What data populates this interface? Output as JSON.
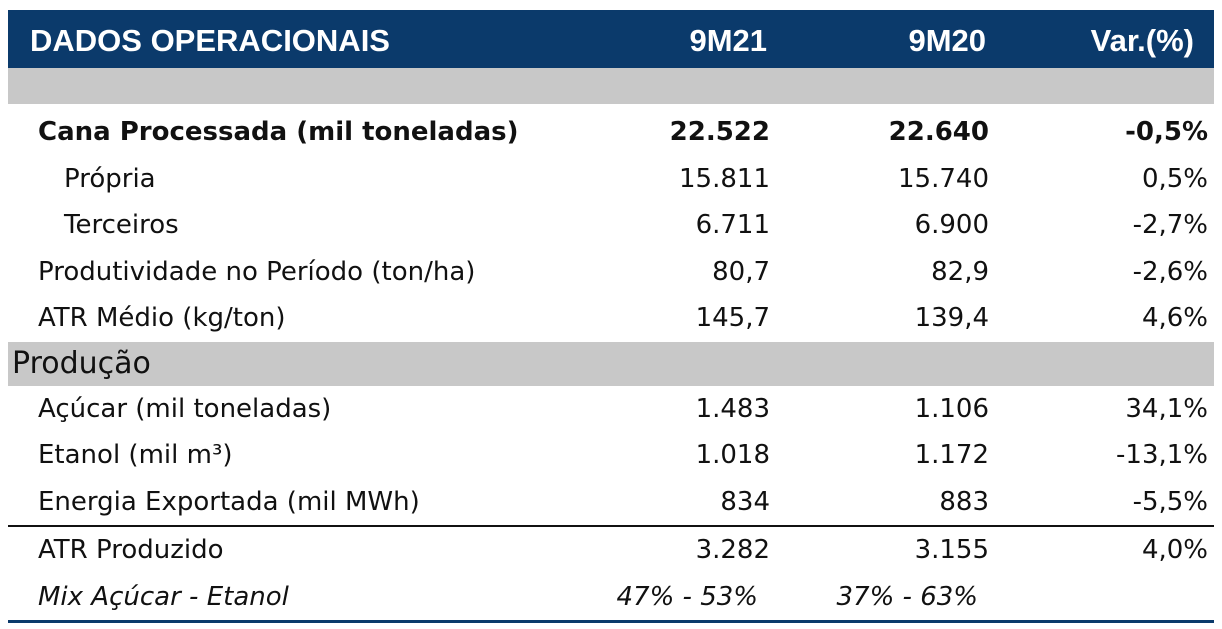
{
  "header": {
    "title": "DADOS OPERACIONAIS",
    "col1": "9M21",
    "col2": "9M20",
    "col3": "Var.(%)"
  },
  "rows_top": [
    {
      "label": "Cana Processada (mil toneladas)",
      "v1": "22.522",
      "v2": "22.640",
      "v3": "-0,5%"
    },
    {
      "label": "Própria",
      "v1": "15.811",
      "v2": "15.740",
      "v3": "0,5%"
    },
    {
      "label": "Terceiros",
      "v1": "6.711",
      "v2": "6.900",
      "v3": "-2,7%"
    },
    {
      "label": "Produtividade no Período (ton/ha)",
      "v1": "80,7",
      "v2": "82,9",
      "v3": "-2,6%"
    },
    {
      "label": "ATR Médio (kg/ton)",
      "v1": "145,7",
      "v2": "139,4",
      "v3": "4,6%"
    }
  ],
  "section": {
    "title": "Produção"
  },
  "rows_production": [
    {
      "label": "Açúcar (mil toneladas)",
      "v1": "1.483",
      "v2": "1.106",
      "v3": "34,1%"
    },
    {
      "label": "Etanol (mil m³)",
      "v1": "1.018",
      "v2": "1.172",
      "v3": "-13,1%"
    },
    {
      "label": "Energia Exportada (mil MWh)",
      "v1": "834",
      "v2": "883",
      "v3": "-5,5%"
    }
  ],
  "rows_bottom": [
    {
      "label": "ATR Produzido",
      "v1": "3.282",
      "v2": "3.155",
      "v3": "4,0%"
    }
  ],
  "mix": {
    "label": "Mix Açúcar - Etanol",
    "v1": "47% - 53%",
    "v2": "37% - 63%"
  },
  "colors": {
    "header_bg": "#0b3a6b",
    "band_grey": "#c8c8c8"
  }
}
